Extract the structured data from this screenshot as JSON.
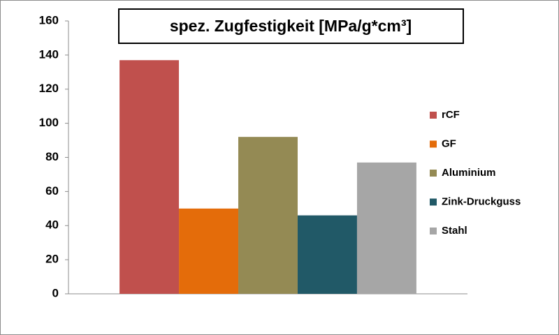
{
  "chart_data": {
    "type": "bar",
    "title": "spez. Zugfestigkeit [MPa/g*cm³]",
    "categories": [
      null
    ],
    "series": [
      {
        "name": "rCF",
        "color": "#c0504d",
        "values": [
          137
        ]
      },
      {
        "name": "GF",
        "color": "#e46c0a",
        "values": [
          50
        ]
      },
      {
        "name": "Aluminium",
        "color": "#948a54",
        "values": [
          92
        ]
      },
      {
        "name": "Zink-Druckguss",
        "color": "#215967",
        "values": [
          46
        ]
      },
      {
        "name": "Stahl",
        "color": "#a6a6a6",
        "values": [
          77
        ]
      }
    ],
    "ylim": [
      0,
      160
    ],
    "yticks": [
      0,
      20,
      40,
      60,
      80,
      100,
      120,
      140,
      160
    ],
    "grid": false,
    "legend": "right"
  }
}
